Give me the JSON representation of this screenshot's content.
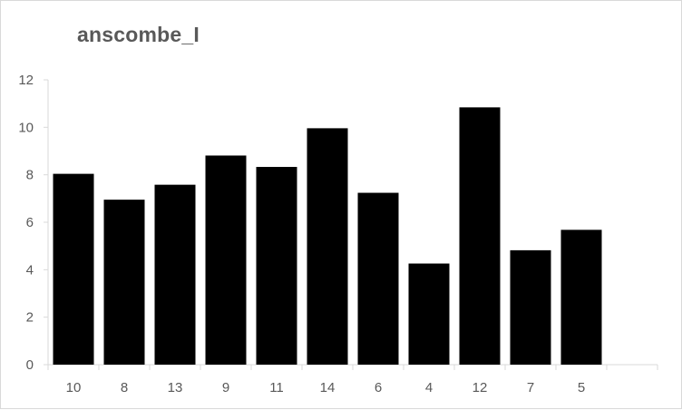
{
  "chart_data": {
    "type": "bar",
    "title": "anscombe_I",
    "xlabel": "",
    "ylabel": "",
    "categories": [
      "10",
      "8",
      "13",
      "9",
      "11",
      "14",
      "6",
      "4",
      "12",
      "7",
      "5"
    ],
    "values": [
      8.04,
      6.95,
      7.58,
      8.81,
      8.33,
      9.96,
      7.24,
      4.26,
      10.84,
      4.82,
      5.68
    ],
    "ylim": [
      0,
      12
    ],
    "yticks": [
      "0",
      "2",
      "4",
      "6",
      "8",
      "10",
      "12"
    ],
    "bar_color": "#000000",
    "grid": false,
    "legend": "none"
  }
}
